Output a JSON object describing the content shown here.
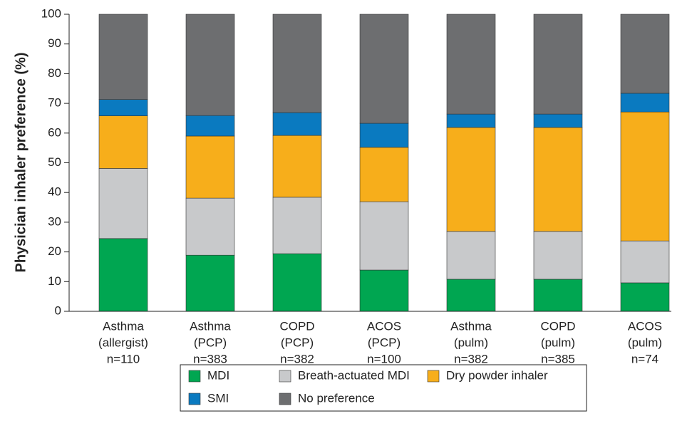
{
  "chart_data": {
    "type": "stacked_bar",
    "y_label": "Physician inhaler preference (%)",
    "categories": [
      [
        "Asthma",
        "(allergist)",
        "n=110"
      ],
      [
        "Asthma",
        "(PCP)",
        "n=383"
      ],
      [
        "COPD",
        "(PCP)",
        "n=382"
      ],
      [
        "ACOS",
        "(PCP)",
        "n=100"
      ],
      [
        "Asthma",
        "(pulm)",
        "n=382"
      ],
      [
        "COPD",
        "(pulm)",
        "n=385"
      ],
      [
        "ACOS",
        "(pulm)",
        "n=74"
      ]
    ],
    "series": [
      {
        "name": "MDI",
        "color": "#00a651",
        "values": [
          24.5,
          18.9,
          19.4,
          13.9,
          10.8,
          10.8,
          9.6
        ]
      },
      {
        "name": "Breath-actuated MDI",
        "color": "#c8c9cb",
        "values": [
          23.6,
          19.2,
          19.0,
          23.0,
          16.1,
          16.1,
          14.1
        ]
      },
      {
        "name": "Dry powder inhaler",
        "color": "#f7ae1b",
        "values": [
          17.7,
          20.9,
          20.8,
          18.3,
          35.0,
          35.0,
          43.4
        ]
      },
      {
        "name": "SMI",
        "color": "#0a7ac0",
        "values": [
          5.5,
          6.9,
          7.7,
          8.1,
          4.5,
          4.5,
          6.3
        ]
      },
      {
        "name": "No preference",
        "color": "#6d6e70",
        "values": [
          28.7,
          34.1,
          33.1,
          36.7,
          33.6,
          33.6,
          26.6
        ]
      }
    ],
    "ylim": [
      0,
      100
    ],
    "yticks": [
      0,
      10,
      20,
      30,
      40,
      50,
      60,
      70,
      80,
      90,
      100
    ],
    "grid": false
  }
}
